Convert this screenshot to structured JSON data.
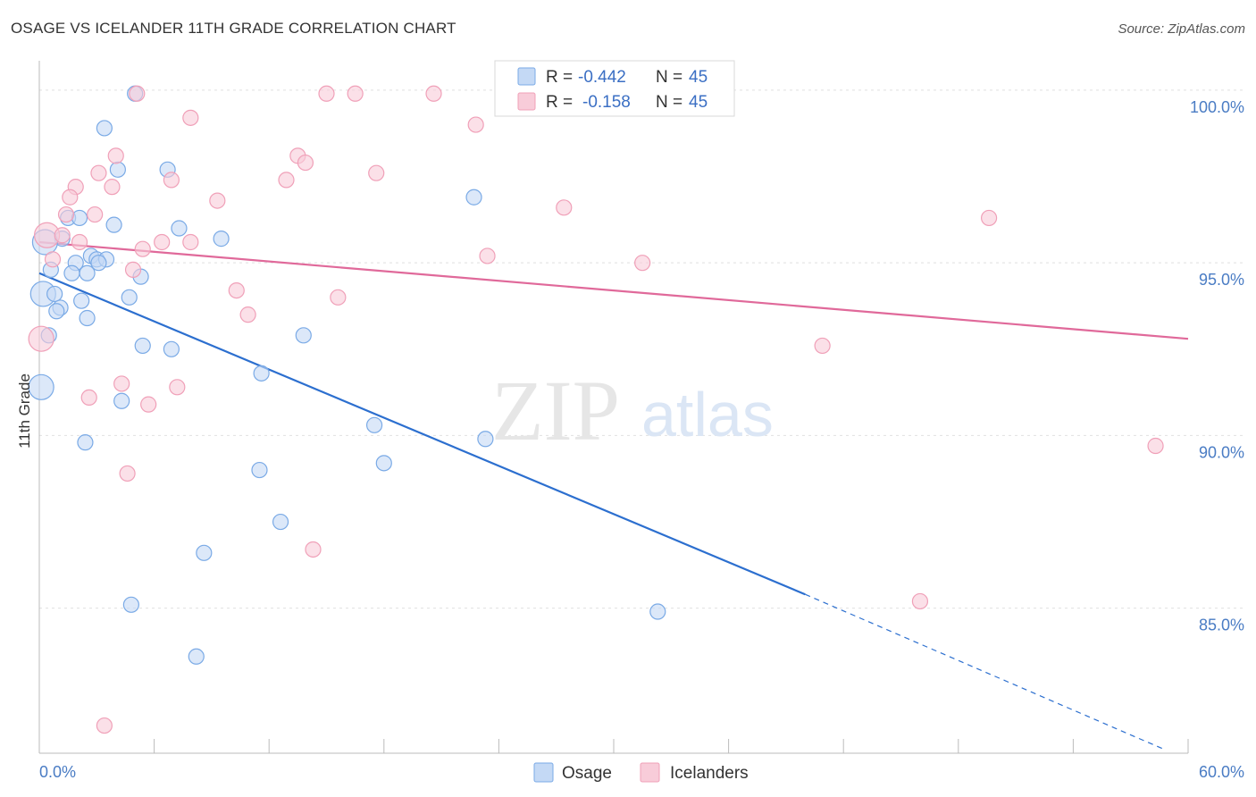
{
  "chart_data": {
    "type": "scatter",
    "title": "OSAGE VS ICELANDER 11TH GRADE CORRELATION CHART",
    "source": "Source: ZipAtlas.com",
    "xlabel": "",
    "ylabel": "11th Grade",
    "xlim": [
      0,
      60
    ],
    "ylim": [
      80.8,
      100.8
    ],
    "x_tick_labels": [
      "0.0%",
      "60.0%"
    ],
    "y_ticks": [
      {
        "value": 100,
        "label": "100.0%"
      },
      {
        "value": 95,
        "label": "95.0%"
      },
      {
        "value": 90,
        "label": "90.0%"
      },
      {
        "value": 85,
        "label": "85.0%"
      }
    ],
    "watermark": {
      "zip": "ZIP",
      "atlas": "atlas"
    },
    "legend_box": {
      "rows": [
        {
          "r_label": "R =",
          "r_value": "-0.442",
          "n_label": "N =",
          "n_value": "45"
        },
        {
          "r_label": "R =",
          "r_value": "-0.158",
          "n_label": "N =",
          "n_value": "45"
        }
      ]
    },
    "series": [
      {
        "name": "Osage",
        "color": "#7aaae6",
        "fill": "#c4d9f5",
        "trend_color": "#2c6fcf",
        "trend": {
          "x0": 0,
          "y0": 94.7,
          "x1": 40,
          "y1": 85.4,
          "dash_x1": 58.8,
          "dash_y1": 80.9
        },
        "points": [
          [
            5.0,
            99.9
          ],
          [
            3.4,
            98.9
          ],
          [
            4.1,
            97.7
          ],
          [
            6.7,
            97.7
          ],
          [
            1.5,
            96.3
          ],
          [
            2.1,
            96.3
          ],
          [
            3.9,
            96.1
          ],
          [
            7.3,
            96.0
          ],
          [
            9.5,
            95.7
          ],
          [
            1.2,
            95.7
          ],
          [
            0.3,
            95.6
          ],
          [
            22.7,
            96.9
          ],
          [
            2.7,
            95.2
          ],
          [
            3.0,
            95.1
          ],
          [
            3.5,
            95.1
          ],
          [
            3.1,
            95.0
          ],
          [
            1.9,
            95.0
          ],
          [
            0.6,
            94.8
          ],
          [
            2.5,
            94.7
          ],
          [
            1.7,
            94.7
          ],
          [
            5.3,
            94.6
          ],
          [
            0.2,
            94.1
          ],
          [
            0.8,
            94.1
          ],
          [
            4.7,
            94.0
          ],
          [
            2.2,
            93.9
          ],
          [
            1.1,
            93.7
          ],
          [
            0.9,
            93.6
          ],
          [
            2.5,
            93.4
          ],
          [
            0.5,
            92.9
          ],
          [
            13.8,
            92.9
          ],
          [
            5.4,
            92.6
          ],
          [
            6.9,
            92.5
          ],
          [
            11.6,
            91.8
          ],
          [
            0.1,
            91.4
          ],
          [
            4.3,
            91.0
          ],
          [
            17.5,
            90.3
          ],
          [
            23.3,
            89.9
          ],
          [
            2.4,
            89.8
          ],
          [
            18.0,
            89.2
          ],
          [
            11.5,
            89.0
          ],
          [
            12.6,
            87.5
          ],
          [
            8.6,
            86.6
          ],
          [
            4.8,
            85.1
          ],
          [
            32.3,
            84.9
          ],
          [
            8.2,
            83.6
          ]
        ]
      },
      {
        "name": "Icelanders",
        "color": "#f0a0b8",
        "fill": "#f8ccd9",
        "trend_color": "#e0699a",
        "trend": {
          "x0": 0,
          "y0": 95.6,
          "x1": 60,
          "y1": 92.8
        },
        "points": [
          [
            5.1,
            99.9
          ],
          [
            15.0,
            99.9
          ],
          [
            16.5,
            99.9
          ],
          [
            20.6,
            99.9
          ],
          [
            7.9,
            99.2
          ],
          [
            22.8,
            99.0
          ],
          [
            4.0,
            98.1
          ],
          [
            13.5,
            98.1
          ],
          [
            13.9,
            97.9
          ],
          [
            3.1,
            97.6
          ],
          [
            17.6,
            97.6
          ],
          [
            6.9,
            97.4
          ],
          [
            12.9,
            97.4
          ],
          [
            1.9,
            97.2
          ],
          [
            3.8,
            97.2
          ],
          [
            1.6,
            96.9
          ],
          [
            9.3,
            96.8
          ],
          [
            27.4,
            96.6
          ],
          [
            1.4,
            96.4
          ],
          [
            2.9,
            96.4
          ],
          [
            49.6,
            96.3
          ],
          [
            0.4,
            95.8
          ],
          [
            1.2,
            95.8
          ],
          [
            2.1,
            95.6
          ],
          [
            6.4,
            95.6
          ],
          [
            7.9,
            95.6
          ],
          [
            5.4,
            95.4
          ],
          [
            23.4,
            95.2
          ],
          [
            0.7,
            95.1
          ],
          [
            31.5,
            95.0
          ],
          [
            4.9,
            94.8
          ],
          [
            10.3,
            94.2
          ],
          [
            15.6,
            94.0
          ],
          [
            10.9,
            93.5
          ],
          [
            0.1,
            92.8
          ],
          [
            40.9,
            92.6
          ],
          [
            4.3,
            91.5
          ],
          [
            7.2,
            91.4
          ],
          [
            2.6,
            91.1
          ],
          [
            5.7,
            90.9
          ],
          [
            58.3,
            89.7
          ],
          [
            4.6,
            88.9
          ],
          [
            14.3,
            86.7
          ],
          [
            46.0,
            85.2
          ],
          [
            3.4,
            81.6
          ]
        ]
      }
    ]
  }
}
